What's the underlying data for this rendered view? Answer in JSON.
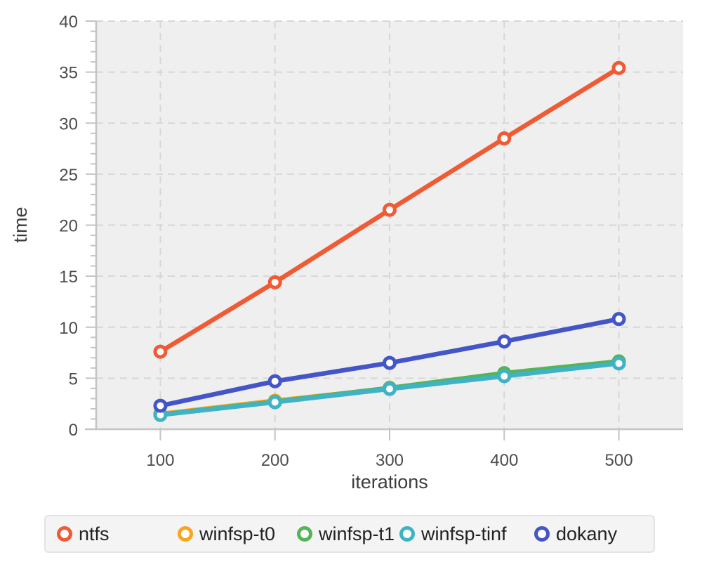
{
  "chart_data": {
    "type": "line",
    "title": "",
    "xlabel": "iterations",
    "ylabel": "time",
    "x": [
      100,
      200,
      300,
      400,
      500
    ],
    "series": [
      {
        "name": "ntfs",
        "color": "#ee5b35",
        "values": [
          7.6,
          14.4,
          21.5,
          28.5,
          35.4
        ]
      },
      {
        "name": "winfsp-t0",
        "color": "#f7a620",
        "values": [
          1.5,
          2.8,
          4.0,
          5.3,
          6.5
        ]
      },
      {
        "name": "winfsp-t1",
        "color": "#55b455",
        "values": [
          1.45,
          2.7,
          4.05,
          5.5,
          6.65
        ]
      },
      {
        "name": "winfsp-tinf",
        "color": "#3fb3c5",
        "values": [
          1.4,
          2.65,
          3.95,
          5.2,
          6.45
        ]
      },
      {
        "name": "dokany",
        "color": "#4355c7",
        "values": [
          2.3,
          4.7,
          6.5,
          8.6,
          10.8
        ]
      }
    ],
    "xlim": [
      44,
      556
    ],
    "ylim": [
      0,
      40
    ],
    "xticks": [
      100,
      200,
      300,
      400,
      500
    ],
    "yticks": [
      0,
      5,
      10,
      15,
      20,
      25,
      30,
      35,
      40
    ],
    "y_minor_tick_step": 1,
    "grid": true,
    "marker": "open-circle",
    "legend_position": "bottom",
    "colors": {
      "plot_bg": "#efefef",
      "grid": "#d7d7d7",
      "axis": "#c4c4c4",
      "tick_label": "#4d4d4d",
      "axis_title": "#3d3d3d",
      "legend_bg": "#f4f4f4",
      "legend_border": "#e4e4e4",
      "legend_text": "#222222"
    }
  }
}
